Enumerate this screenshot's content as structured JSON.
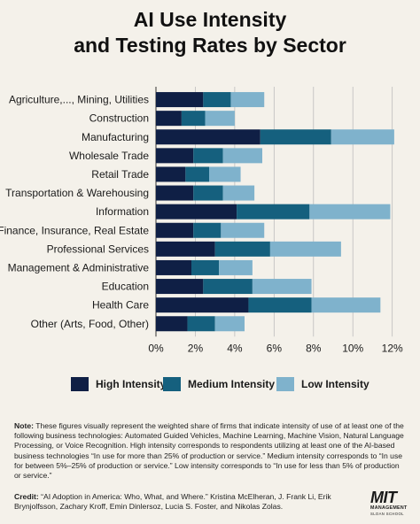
{
  "title_line1": "AI Use Intensity",
  "title_line2": "and Testing Rates by Sector",
  "legend": [
    {
      "label": "High Intensity",
      "color": "#0f1f45"
    },
    {
      "label": "Medium Intensity",
      "color": "#15607e"
    },
    {
      "label": "Low Intensity",
      "color": "#7fb2cc"
    }
  ],
  "note_label": "Note:",
  "note_text": "These figures visually represent the weighted share of firms that indicate intensity of use of at least one of the following business technologies: Automated Guided Vehicles, Machine Learning, Machine Vision, Natural Language Processing, or Voice Recognition. High intensity corresponds to respondents utilizing at least one of the AI-based business technologies “In use for more than 25% of production or service.” Medium intensity corresponds to “In use for between 5%–25% of production or service.” Low intensity corresponds to “In use for less than 5% of production or service.”",
  "credit_label": "Credit:",
  "credit_text": "“AI Adoption in America: Who, What, and Where.” Kristina McElheran, J. Frank Li, Erik Brynjolfsson, Zachary Kroff, Emin Dinlersoz, Lucia S. Foster, and Nikolas Zolas.",
  "logo": {
    "mark": "MIT",
    "line1": "MANAGEMENT",
    "line2": "SLOAN SCHOOL"
  },
  "chart_data": {
    "type": "bar",
    "orientation": "horizontal",
    "stacked": true,
    "title": "AI Use Intensity and Testing Rates by Sector",
    "categories": [
      "Agriculture,..., Mining, Utilities",
      "Construction",
      "Manufacturing",
      "Wholesale Trade",
      "Retail Trade",
      "Transportation & Warehousing",
      "Information",
      "Finance, Insurance, Real Estate",
      "Professional Services",
      "Management & Administrative",
      "Education",
      "Health Care",
      "Other (Arts, Food, Other)"
    ],
    "series": [
      {
        "name": "High Intensity",
        "color": "#0f1f45",
        "values": [
          2.4,
          1.3,
          5.3,
          1.9,
          1.5,
          1.9,
          4.1,
          1.9,
          3.0,
          1.8,
          2.4,
          4.7,
          1.6
        ]
      },
      {
        "name": "Medium Intensity",
        "color": "#15607e",
        "values": [
          1.4,
          1.2,
          3.6,
          1.5,
          1.2,
          1.5,
          3.7,
          1.4,
          2.8,
          1.4,
          2.5,
          3.2,
          1.4
        ]
      },
      {
        "name": "Low Intensity",
        "color": "#7fb2cc",
        "values": [
          1.7,
          1.5,
          3.2,
          2.0,
          1.6,
          1.6,
          4.1,
          2.2,
          3.6,
          1.7,
          3.0,
          3.5,
          1.5
        ]
      }
    ],
    "xticks": [
      "0%",
      "2%",
      "4%",
      "6%",
      "8%",
      "10%",
      "12%"
    ],
    "xtick_values": [
      0,
      2,
      4,
      6,
      8,
      10,
      12
    ],
    "xlim": [
      0,
      12.6
    ],
    "xlabel": "",
    "ylabel": "",
    "grid": true,
    "legend_position": "bottom"
  }
}
